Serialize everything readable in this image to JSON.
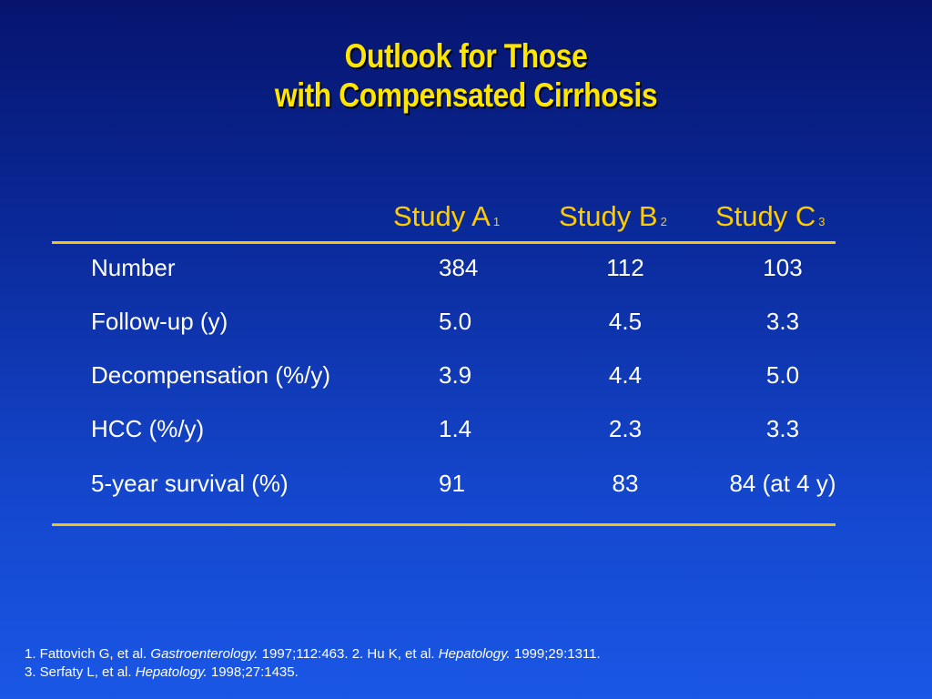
{
  "title": {
    "line1": "Outlook for Those",
    "line2": "with Compensated Cirrhosis"
  },
  "columns": [
    {
      "label": "Study A",
      "ref": "1"
    },
    {
      "label": "Study B",
      "ref": "2"
    },
    {
      "label": "Study C",
      "ref": "3"
    }
  ],
  "rows": [
    {
      "label": "Number",
      "a": "384",
      "b": "112",
      "c": "103"
    },
    {
      "label": "Follow-up (y)",
      "a": "5.0",
      "b": "4.5",
      "c": "3.3"
    },
    {
      "label": "Decompensation (%/y)",
      "a": "3.9",
      "b": "4.4",
      "c": "5.0"
    },
    {
      "label": "HCC (%/y)",
      "a": "1.4",
      "b": "2.3",
      "c": "3.3"
    },
    {
      "label": "5-year survival (%)",
      "a": "91",
      "b": "83",
      "c": "84 (at 4 y)"
    }
  ],
  "references": {
    "r1_text": "1. Fattovich G, et al. ",
    "r1_journal": "Gastroenterology.",
    "r1_cite": " 1997;112:463. ",
    "r2_text": "2. Hu K, et al. ",
    "r2_journal": "Hepatology.",
    "r2_cite": " 1999;29:1311.",
    "r3_text": "3. Serfaty L, et al. ",
    "r3_journal": "Hepatology.",
    "r3_cite": " 1998;27:1435."
  },
  "colors": {
    "title": "#ffe600",
    "rule": "#f0c419",
    "column_header": "#ffcc00",
    "background_top": "#06146e",
    "background_bottom": "#1a57e6"
  }
}
